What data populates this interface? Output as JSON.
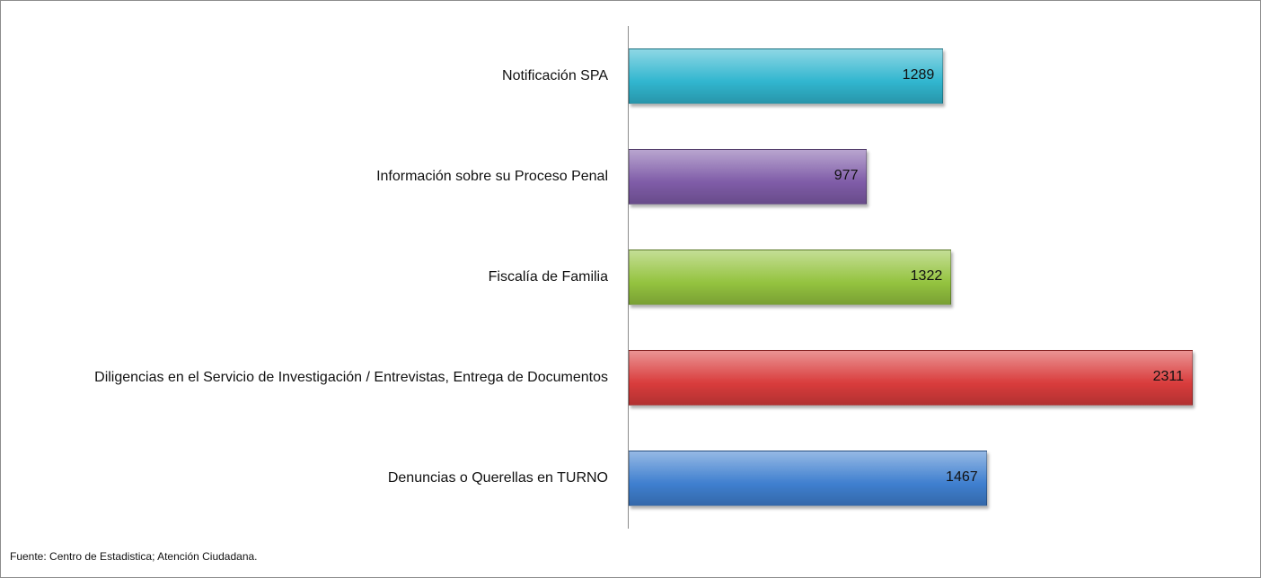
{
  "chart_data": {
    "type": "barh",
    "categories": [
      "Notificación SPA",
      "Información sobre su Proceso Penal",
      "Fiscalía de Familia",
      "Diligencias en el Servicio de Investigación / Entrevistas, Entrega de Documentos",
      "Denuncias o Querellas en TURNO"
    ],
    "values": [
      1289,
      977,
      1322,
      2311,
      1467
    ],
    "colors": [
      "#31b6cf",
      "#7f5ca8",
      "#94c33f",
      "#d93c3c",
      "#3f7fcf"
    ],
    "note": "Fuente: Centro de Estadistica; Atención Ciudadana."
  }
}
